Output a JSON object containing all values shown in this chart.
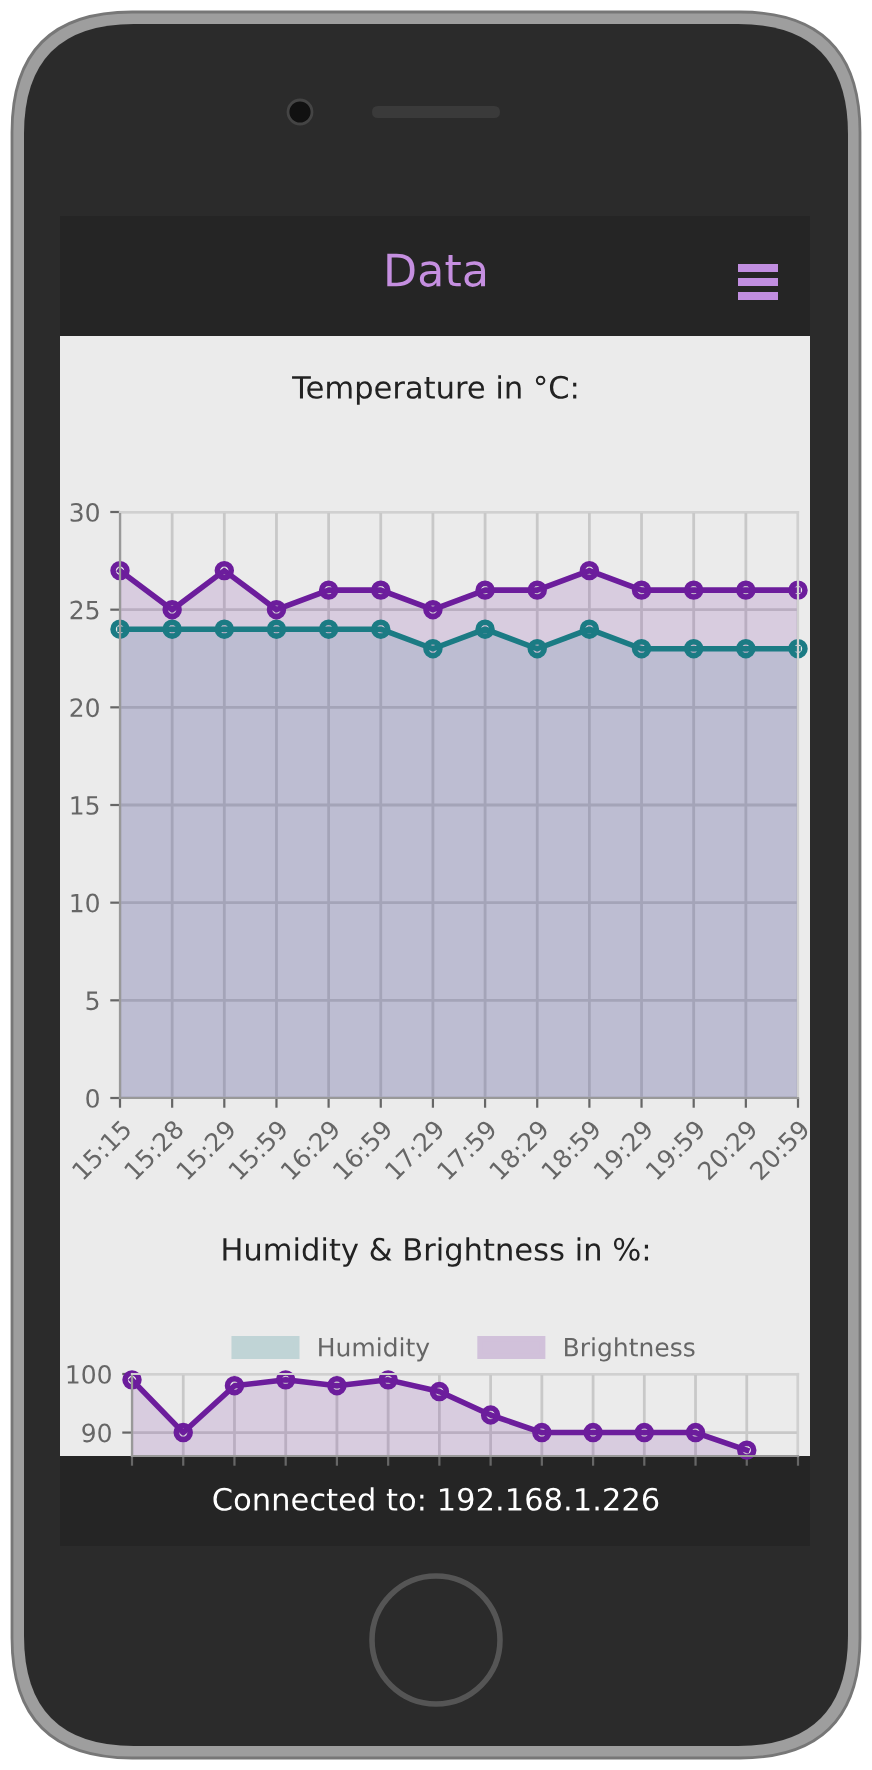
{
  "chart_data": [
    {
      "type": "area",
      "title": "Temperature in °C:",
      "annotations": [
        "Data"
      ],
      "categories": [
        "15:15",
        "15:28",
        "15:29",
        "15:59",
        "16:29",
        "16:59",
        "17:29",
        "17:59",
        "18:29",
        "18:59",
        "19:29",
        "19:59",
        "20:29",
        "20:59"
      ],
      "series": [
        {
          "color": "#1b7b84",
          "values": [
            24,
            24,
            24,
            24,
            24,
            24,
            23,
            24,
            23,
            24,
            23,
            23,
            23,
            23
          ]
        },
        {
          "color": "#6c1d9c",
          "values": [
            27,
            25,
            27,
            25,
            26,
            26,
            25,
            26,
            26,
            27,
            26,
            26,
            26,
            26
          ]
        }
      ],
      "ylim": [
        0,
        30
      ],
      "yticks": [
        0,
        5,
        10,
        15,
        20,
        25,
        30
      ],
      "grid": true,
      "marker": "circle",
      "line_style": "solid"
    },
    {
      "type": "area",
      "title": "Humidity & Brightness in %:",
      "annotations": [
        "Connected to: 192.168.1.226"
      ],
      "categories": [
        null,
        null,
        null,
        null,
        null,
        null,
        null,
        null,
        null,
        null,
        null,
        null,
        null,
        null
      ],
      "series": [
        {
          "name": "Humidity",
          "color": "#1b7b84",
          "values": [
            null,
            null,
            null,
            null,
            null,
            null,
            null,
            null,
            null,
            null,
            null,
            null,
            null,
            null
          ]
        },
        {
          "name": "Brightness",
          "color": "#6c1d9c",
          "values": [
            99,
            90,
            98,
            99,
            98,
            99,
            97,
            93,
            90,
            90,
            90,
            90,
            87,
            null
          ]
        }
      ],
      "ylim": [
        86,
        100
      ],
      "yticks": [
        90,
        100
      ],
      "grid": true,
      "legend": "top",
      "marker": "circle",
      "line_style": "solid",
      "tick_labels": "y"
    }
  ]
}
